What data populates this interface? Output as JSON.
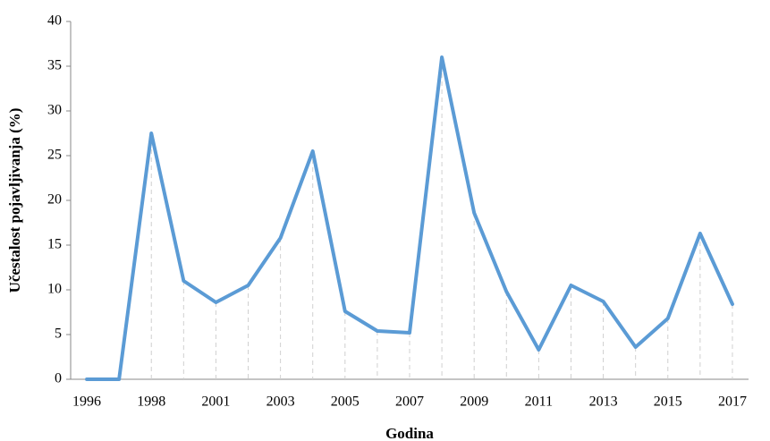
{
  "chart_data": {
    "type": "line",
    "x_label": "Godina",
    "y_label": "Učestalost pojavljivanja (%)",
    "categories": [
      "1996",
      null,
      "1998",
      null,
      "2001",
      null,
      "2003",
      null,
      "2005",
      null,
      "2007",
      null,
      "2009",
      null,
      "2011",
      null,
      "2013",
      null,
      "2015",
      null,
      "2017"
    ],
    "values": [
      0,
      0,
      27.5,
      11,
      8.6,
      10.5,
      15.8,
      25.5,
      7.6,
      5.4,
      5.2,
      36,
      18.6,
      9.8,
      3.3,
      10.5,
      8.7,
      3.6,
      6.8,
      16.3,
      8.4
    ],
    "color": "#5b9bd5",
    "ylim": [
      0,
      40
    ],
    "yticks": [
      0,
      5,
      10,
      15,
      20,
      25,
      30,
      35,
      40
    ],
    "drop_lines": true
  }
}
